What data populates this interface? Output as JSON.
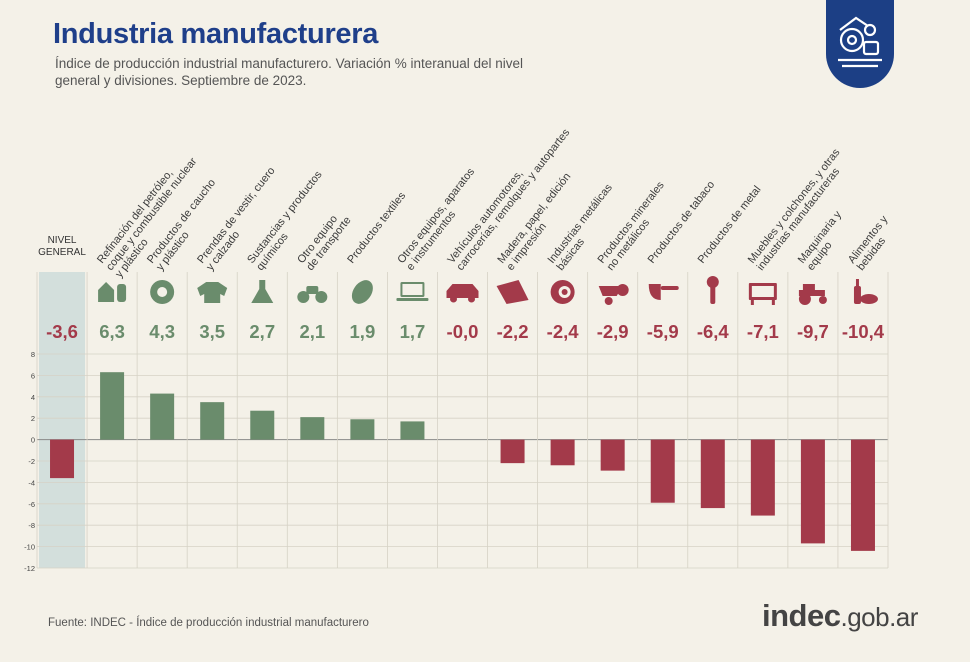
{
  "header": {
    "title": "Industria manufacturera",
    "subtitle": "Índice de producción industrial manufacturero. Variación % interanual del nivel general y divisiones. Septiembre de 2023."
  },
  "footer": {
    "source": "Fuente: INDEC - Índice de producción industrial manufacturero",
    "brand_bold": "indec",
    "brand_light": ".gob.ar"
  },
  "colors": {
    "positive": "#6a8c6c",
    "negative": "#a33a4a",
    "highlight_band": "#c8d8d8",
    "title": "#1f3f8a"
  },
  "chart_data": {
    "type": "bar",
    "title": "Industria manufacturera",
    "ylim": [
      -12,
      8
    ],
    "yticks": [
      8,
      6,
      4,
      2,
      0,
      -2,
      -4,
      -6,
      -8,
      -10,
      -12
    ],
    "grid": true,
    "categories": [
      {
        "label": [
          "NIVEL",
          "GENERAL"
        ],
        "value": -3.6,
        "value_label": "-3,6",
        "icon": "none",
        "highlight": true
      },
      {
        "label": [
          "Refinación del petróleo,",
          "coque y combustible nuclear",
          "y plástico"
        ],
        "value": 6.3,
        "value_label": "6,3",
        "icon": "refinery-icon"
      },
      {
        "label": [
          "Productos de caucho",
          "y plástico"
        ],
        "value": 4.3,
        "value_label": "4,3",
        "icon": "tire-icon"
      },
      {
        "label": [
          "Prendas de vestir, cuero",
          "y calzado"
        ],
        "value": 3.5,
        "value_label": "3,5",
        "icon": "sweater-icon"
      },
      {
        "label": [
          "Sustancias y productos",
          "químicos"
        ],
        "value": 2.7,
        "value_label": "2,7",
        "icon": "flask-icon"
      },
      {
        "label": [
          "Otro equipo",
          "de transporte"
        ],
        "value": 2.1,
        "value_label": "2,1",
        "icon": "motorcycle-icon"
      },
      {
        "label": [
          "Productos textiles"
        ],
        "value": 1.9,
        "value_label": "1,9",
        "icon": "thread-spool-icon"
      },
      {
        "label": [
          "Otros equipos, aparatos",
          "e instrumentos"
        ],
        "value": 1.7,
        "value_label": "1,7",
        "icon": "laptop-icon"
      },
      {
        "label": [
          "Vehículos automotores,",
          "carrocerías, remolques y autopartes"
        ],
        "value": -0.04,
        "value_label": "-0,0",
        "icon": "car-icon"
      },
      {
        "label": [
          "Madera, papel, edición",
          "e impresión"
        ],
        "value": -2.2,
        "value_label": "-2,2",
        "icon": "paper-icon"
      },
      {
        "label": [
          "Industrias metálicas",
          "básicas"
        ],
        "value": -2.4,
        "value_label": "-2,4",
        "icon": "metal-coil-icon"
      },
      {
        "label": [
          "Productos minerales",
          "no metálicos"
        ],
        "value": -2.9,
        "value_label": "-2,9",
        "icon": "wheelbarrow-icon"
      },
      {
        "label": [
          "Productos de tabaco"
        ],
        "value": -5.9,
        "value_label": "-5,9",
        "icon": "pipe-icon"
      },
      {
        "label": [
          "Productos de metal"
        ],
        "value": -6.4,
        "value_label": "-6,4",
        "icon": "wrench-icon"
      },
      {
        "label": [
          "Muebles y colchones, y otras",
          "industrias manufactureras"
        ],
        "value": -7.1,
        "value_label": "-7,1",
        "icon": "furniture-icon"
      },
      {
        "label": [
          "Maquinaria y",
          "equipo"
        ],
        "value": -9.7,
        "value_label": "-9,7",
        "icon": "tractor-icon"
      },
      {
        "label": [
          "Alimentos y",
          "bebidas"
        ],
        "value": -10.4,
        "value_label": "-10,4",
        "icon": "bottle-bread-icon"
      }
    ]
  }
}
